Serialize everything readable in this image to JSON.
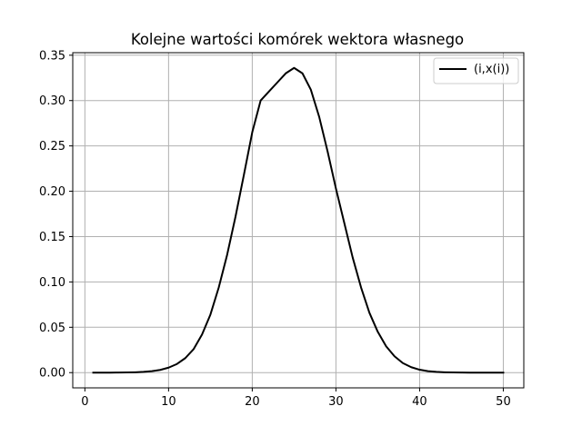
{
  "chart_data": {
    "type": "line",
    "title": "Kolejne wartości komórek wektora własnego",
    "xlabel": "",
    "ylabel": "",
    "xlim": [
      -1.45,
      52.45
    ],
    "ylim": [
      -0.0168,
      0.3528
    ],
    "xticks": [
      0,
      10,
      20,
      30,
      40,
      50
    ],
    "xtick_labels": [
      "0",
      "10",
      "20",
      "30",
      "40",
      "50"
    ],
    "yticks": [
      0.0,
      0.05,
      0.1,
      0.15,
      0.2,
      0.25,
      0.3,
      0.35
    ],
    "ytick_labels": [
      "0.00",
      "0.05",
      "0.10",
      "0.15",
      "0.20",
      "0.25",
      "0.30",
      "0.35"
    ],
    "grid": true,
    "legend_position": "top-right",
    "series": [
      {
        "name": "(i,x(i))",
        "color": "#000000",
        "x": [
          1,
          2,
          3,
          4,
          5,
          6,
          7,
          8,
          9,
          10,
          11,
          12,
          13,
          14,
          15,
          16,
          17,
          18,
          19,
          20,
          21,
          22,
          23,
          24,
          25,
          26,
          27,
          28,
          29,
          30,
          31,
          32,
          33,
          34,
          35,
          36,
          37,
          38,
          39,
          40,
          41,
          42,
          43,
          44,
          45,
          46,
          47,
          48,
          49,
          50
        ],
        "y": [
          0.0,
          0.0,
          0.0,
          0.0001,
          0.0002,
          0.0004,
          0.0008,
          0.0016,
          0.003,
          0.0055,
          0.0095,
          0.016,
          0.026,
          0.042,
          0.064,
          0.094,
          0.13,
          0.172,
          0.218,
          0.265,
          0.3,
          0.31,
          0.32,
          0.33,
          0.336,
          0.33,
          0.312,
          0.282,
          0.244,
          0.203,
          0.165,
          0.127,
          0.094,
          0.066,
          0.045,
          0.029,
          0.018,
          0.0105,
          0.006,
          0.0032,
          0.0016,
          0.0008,
          0.0004,
          0.0002,
          0.0001,
          0.0,
          0.0,
          0.0,
          0.0,
          0.0
        ]
      }
    ]
  }
}
